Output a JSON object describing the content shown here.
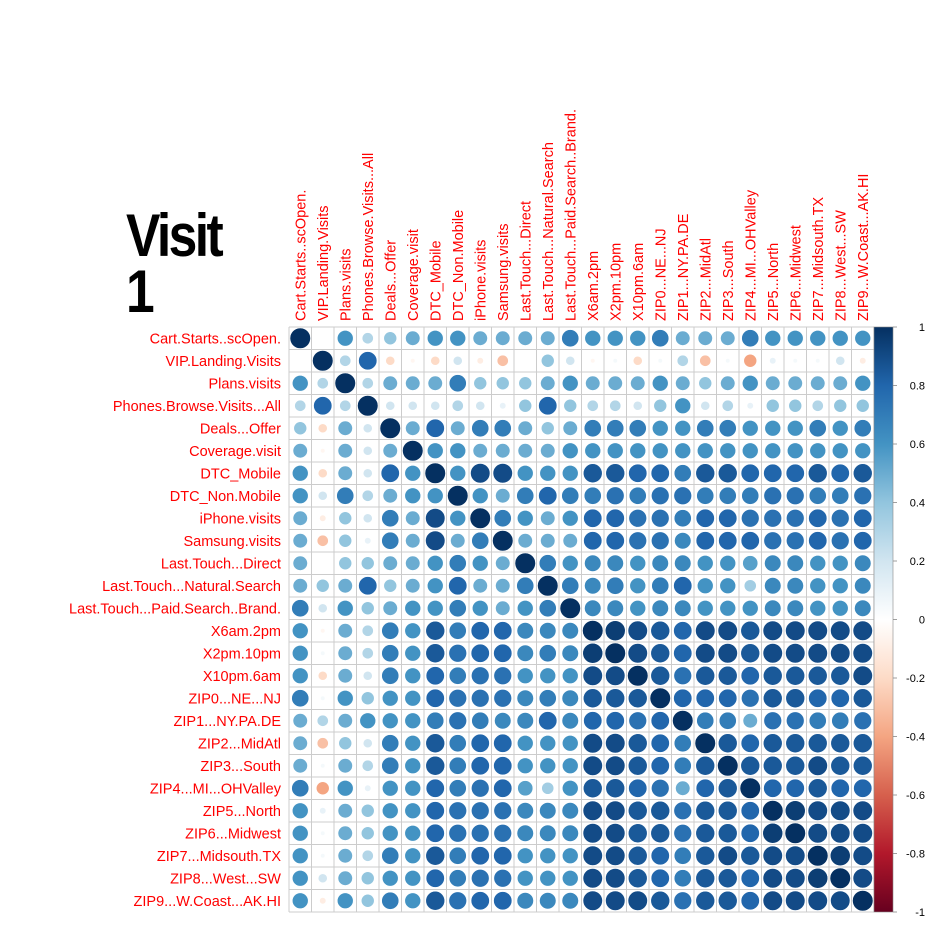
{
  "chart_data": {
    "type": "heatmap",
    "subtype": "correlation-circles",
    "title": [
      "Visit",
      "1"
    ],
    "labels": [
      "Cart.Starts..scOpen.",
      "VIP.Landing.Visits",
      "Plans.visits",
      "Phones.Browse.Visits...All",
      "Deals...Offer",
      "Coverage.visit",
      "DTC_Mobile",
      "DTC_Non.Mobile",
      "iPhone.visits",
      "Samsung.visits",
      "Last.Touch...Direct",
      "Last.Touch...Natural.Search",
      "Last.Touch...Paid.Search..Brand.",
      "X6am.2pm",
      "X2pm.10pm",
      "X10pm.6am",
      "ZIP0...NE...NJ",
      "ZIP1...NY.PA.DE",
      "ZIP2...MidAtl",
      "ZIP3...South",
      "ZIP4...MI...OHValley",
      "ZIP5...North",
      "ZIP6...Midwest",
      "ZIP7...Midsouth.TX",
      "ZIP8...West...SW",
      "ZIP9...W.Coast...AK.HI"
    ],
    "matrix": [
      [
        1,
        0,
        0.6,
        0.3,
        0.4,
        0.5,
        0.6,
        0.6,
        0.5,
        0.5,
        0.5,
        0.5,
        0.7,
        0.6,
        0.6,
        0.6,
        0.7,
        0.5,
        0.5,
        0.5,
        0.7,
        0.6,
        0.6,
        0.6,
        0.6,
        0.6
      ],
      [
        0,
        1,
        0.3,
        0.8,
        -0.2,
        -0.05,
        -0.2,
        0.2,
        -0.1,
        -0.3,
        0,
        0.4,
        0.2,
        -0.05,
        0.05,
        -0.2,
        0.05,
        0.3,
        -0.3,
        0.05,
        -0.4,
        0.1,
        0.05,
        0.05,
        0.2,
        -0.1
      ],
      [
        0.6,
        0.3,
        1,
        0.3,
        0.5,
        0.5,
        0.5,
        0.7,
        0.4,
        0.4,
        0.4,
        0.5,
        0.6,
        0.5,
        0.5,
        0.5,
        0.6,
        0.5,
        0.4,
        0.5,
        0.6,
        0.5,
        0.5,
        0.5,
        0.5,
        0.6
      ],
      [
        0.3,
        0.8,
        0.3,
        1,
        0.2,
        0.2,
        0.2,
        0.3,
        0.2,
        0.1,
        0.4,
        0.8,
        0.4,
        0.3,
        0.3,
        0.2,
        0.4,
        0.6,
        0.2,
        0.3,
        0.1,
        0.4,
        0.4,
        0.3,
        0.4,
        0.4
      ],
      [
        0.4,
        -0.2,
        0.5,
        0.2,
        1,
        0.5,
        0.8,
        0.5,
        0.7,
        0.7,
        0.5,
        0.4,
        0.5,
        0.7,
        0.7,
        0.7,
        0.6,
        0.6,
        0.7,
        0.7,
        0.6,
        0.6,
        0.6,
        0.7,
        0.6,
        0.7
      ],
      [
        0.5,
        -0.05,
        0.5,
        0.2,
        0.5,
        1,
        0.6,
        0.6,
        0.5,
        0.5,
        0.5,
        0.5,
        0.6,
        0.6,
        0.6,
        0.6,
        0.6,
        0.6,
        0.6,
        0.6,
        0.6,
        0.6,
        0.6,
        0.6,
        0.6,
        0.6
      ],
      [
        0.6,
        -0.2,
        0.5,
        0.2,
        0.8,
        0.6,
        1,
        0.6,
        0.9,
        0.9,
        0.6,
        0.6,
        0.6,
        0.85,
        0.85,
        0.8,
        0.8,
        0.7,
        0.85,
        0.85,
        0.8,
        0.8,
        0.8,
        0.85,
        0.8,
        0.85
      ],
      [
        0.6,
        0.2,
        0.7,
        0.3,
        0.5,
        0.6,
        0.6,
        1,
        0.6,
        0.5,
        0.7,
        0.8,
        0.7,
        0.7,
        0.75,
        0.7,
        0.75,
        0.75,
        0.7,
        0.7,
        0.7,
        0.75,
        0.75,
        0.7,
        0.7,
        0.75
      ],
      [
        0.5,
        -0.1,
        0.4,
        0.2,
        0.7,
        0.5,
        0.9,
        0.6,
        1,
        0.7,
        0.6,
        0.5,
        0.6,
        0.8,
        0.8,
        0.75,
        0.75,
        0.7,
        0.8,
        0.8,
        0.75,
        0.75,
        0.75,
        0.8,
        0.75,
        0.8
      ],
      [
        0.5,
        -0.3,
        0.4,
        0.1,
        0.7,
        0.5,
        0.9,
        0.5,
        0.7,
        1,
        0.5,
        0.5,
        0.5,
        0.8,
        0.8,
        0.75,
        0.75,
        0.65,
        0.8,
        0.8,
        0.8,
        0.75,
        0.75,
        0.8,
        0.75,
        0.8
      ],
      [
        0.5,
        0,
        0.4,
        0.4,
        0.5,
        0.5,
        0.6,
        0.7,
        0.6,
        0.5,
        1,
        0.7,
        0.6,
        0.65,
        0.65,
        0.6,
        0.65,
        0.65,
        0.6,
        0.6,
        0.55,
        0.65,
        0.65,
        0.6,
        0.6,
        0.65
      ],
      [
        0.5,
        0.4,
        0.5,
        0.8,
        0.4,
        0.5,
        0.6,
        0.8,
        0.5,
        0.5,
        0.7,
        1,
        0.7,
        0.65,
        0.7,
        0.6,
        0.7,
        0.8,
        0.6,
        0.6,
        0.35,
        0.65,
        0.65,
        0.6,
        0.6,
        0.65
      ],
      [
        0.7,
        0.2,
        0.6,
        0.4,
        0.5,
        0.6,
        0.6,
        0.7,
        0.6,
        0.5,
        0.6,
        0.7,
        1,
        0.65,
        0.65,
        0.6,
        0.65,
        0.65,
        0.6,
        0.6,
        0.6,
        0.65,
        0.65,
        0.6,
        0.6,
        0.65
      ],
      [
        0.6,
        -0.05,
        0.5,
        0.3,
        0.7,
        0.6,
        0.85,
        0.7,
        0.8,
        0.8,
        0.65,
        0.65,
        0.65,
        1,
        0.95,
        0.9,
        0.85,
        0.8,
        0.9,
        0.9,
        0.85,
        0.9,
        0.9,
        0.9,
        0.9,
        0.9
      ],
      [
        0.6,
        0.05,
        0.5,
        0.3,
        0.7,
        0.6,
        0.85,
        0.75,
        0.8,
        0.8,
        0.65,
        0.7,
        0.65,
        0.95,
        1,
        0.9,
        0.85,
        0.8,
        0.9,
        0.9,
        0.85,
        0.9,
        0.9,
        0.9,
        0.9,
        0.9
      ],
      [
        0.6,
        -0.2,
        0.5,
        0.2,
        0.7,
        0.6,
        0.8,
        0.7,
        0.75,
        0.75,
        0.6,
        0.6,
        0.6,
        0.9,
        0.9,
        1,
        0.85,
        0.75,
        0.85,
        0.85,
        0.8,
        0.85,
        0.85,
        0.85,
        0.85,
        0.9
      ],
      [
        0.7,
        0.05,
        0.6,
        0.4,
        0.6,
        0.6,
        0.8,
        0.75,
        0.75,
        0.75,
        0.65,
        0.7,
        0.65,
        0.85,
        0.85,
        0.85,
        1,
        0.8,
        0.8,
        0.8,
        0.75,
        0.85,
        0.85,
        0.8,
        0.8,
        0.85
      ],
      [
        0.5,
        0.3,
        0.5,
        0.6,
        0.6,
        0.6,
        0.7,
        0.75,
        0.7,
        0.65,
        0.65,
        0.8,
        0.65,
        0.8,
        0.8,
        0.75,
        0.8,
        1,
        0.7,
        0.7,
        0.5,
        0.75,
        0.75,
        0.7,
        0.7,
        0.75
      ],
      [
        0.5,
        -0.3,
        0.4,
        0.2,
        0.7,
        0.6,
        0.85,
        0.7,
        0.8,
        0.8,
        0.6,
        0.6,
        0.6,
        0.9,
        0.9,
        0.85,
        0.8,
        0.7,
        1,
        0.85,
        0.8,
        0.85,
        0.85,
        0.85,
        0.85,
        0.85
      ],
      [
        0.5,
        0.05,
        0.5,
        0.3,
        0.7,
        0.6,
        0.85,
        0.7,
        0.8,
        0.8,
        0.6,
        0.6,
        0.6,
        0.9,
        0.9,
        0.85,
        0.8,
        0.7,
        0.85,
        1,
        0.85,
        0.85,
        0.85,
        0.9,
        0.85,
        0.85
      ],
      [
        0.7,
        -0.4,
        0.6,
        0.1,
        0.6,
        0.6,
        0.8,
        0.7,
        0.75,
        0.8,
        0.55,
        0.35,
        0.6,
        0.85,
        0.85,
        0.8,
        0.75,
        0.5,
        0.8,
        0.85,
        1,
        0.8,
        0.8,
        0.85,
        0.8,
        0.8
      ],
      [
        0.6,
        0.1,
        0.5,
        0.4,
        0.6,
        0.6,
        0.8,
        0.75,
        0.75,
        0.75,
        0.65,
        0.65,
        0.65,
        0.9,
        0.9,
        0.85,
        0.85,
        0.75,
        0.85,
        0.85,
        0.8,
        1,
        0.95,
        0.9,
        0.9,
        0.9
      ],
      [
        0.6,
        0.05,
        0.5,
        0.4,
        0.6,
        0.6,
        0.8,
        0.75,
        0.75,
        0.75,
        0.65,
        0.65,
        0.65,
        0.9,
        0.9,
        0.85,
        0.85,
        0.75,
        0.85,
        0.85,
        0.8,
        0.95,
        1,
        0.9,
        0.9,
        0.9
      ],
      [
        0.6,
        0.05,
        0.5,
        0.3,
        0.7,
        0.6,
        0.85,
        0.7,
        0.8,
        0.8,
        0.6,
        0.6,
        0.6,
        0.9,
        0.9,
        0.85,
        0.8,
        0.7,
        0.85,
        0.9,
        0.85,
        0.9,
        0.9,
        1,
        0.95,
        0.9
      ],
      [
        0.6,
        0.2,
        0.5,
        0.4,
        0.6,
        0.6,
        0.8,
        0.7,
        0.75,
        0.75,
        0.6,
        0.6,
        0.6,
        0.9,
        0.9,
        0.85,
        0.8,
        0.7,
        0.85,
        0.85,
        0.8,
        0.9,
        0.9,
        0.95,
        1,
        0.9
      ],
      [
        0.6,
        -0.1,
        0.6,
        0.4,
        0.7,
        0.6,
        0.85,
        0.75,
        0.8,
        0.8,
        0.65,
        0.65,
        0.65,
        0.9,
        0.9,
        0.9,
        0.85,
        0.75,
        0.85,
        0.85,
        0.8,
        0.9,
        0.9,
        0.9,
        0.9,
        1
      ]
    ],
    "colorbar": {
      "range": [
        -1,
        1
      ],
      "ticks": [
        {
          "value": 1,
          "label": "1"
        },
        {
          "value": 0.8,
          "label": "0.8"
        },
        {
          "value": 0.6,
          "label": "0.6"
        },
        {
          "value": 0.4,
          "label": "0.4"
        },
        {
          "value": 0.2,
          "label": "0.2"
        },
        {
          "value": 0,
          "label": "0"
        },
        {
          "value": -0.2,
          "label": "-0.2"
        },
        {
          "value": -0.4,
          "label": "-0.4"
        },
        {
          "value": -0.6,
          "label": "-0.6"
        },
        {
          "value": -0.8,
          "label": "-0.8"
        },
        {
          "value": -1,
          "label": "-1"
        }
      ],
      "colors": [
        "#67001f",
        "#b2182b",
        "#d6604d",
        "#f4a582",
        "#fddbc7",
        "#ffffff",
        "#d1e5f0",
        "#92c5de",
        "#4393c3",
        "#2166ac",
        "#053061"
      ]
    },
    "label_color": "#ff0000",
    "grid_color": "#cccccc"
  }
}
